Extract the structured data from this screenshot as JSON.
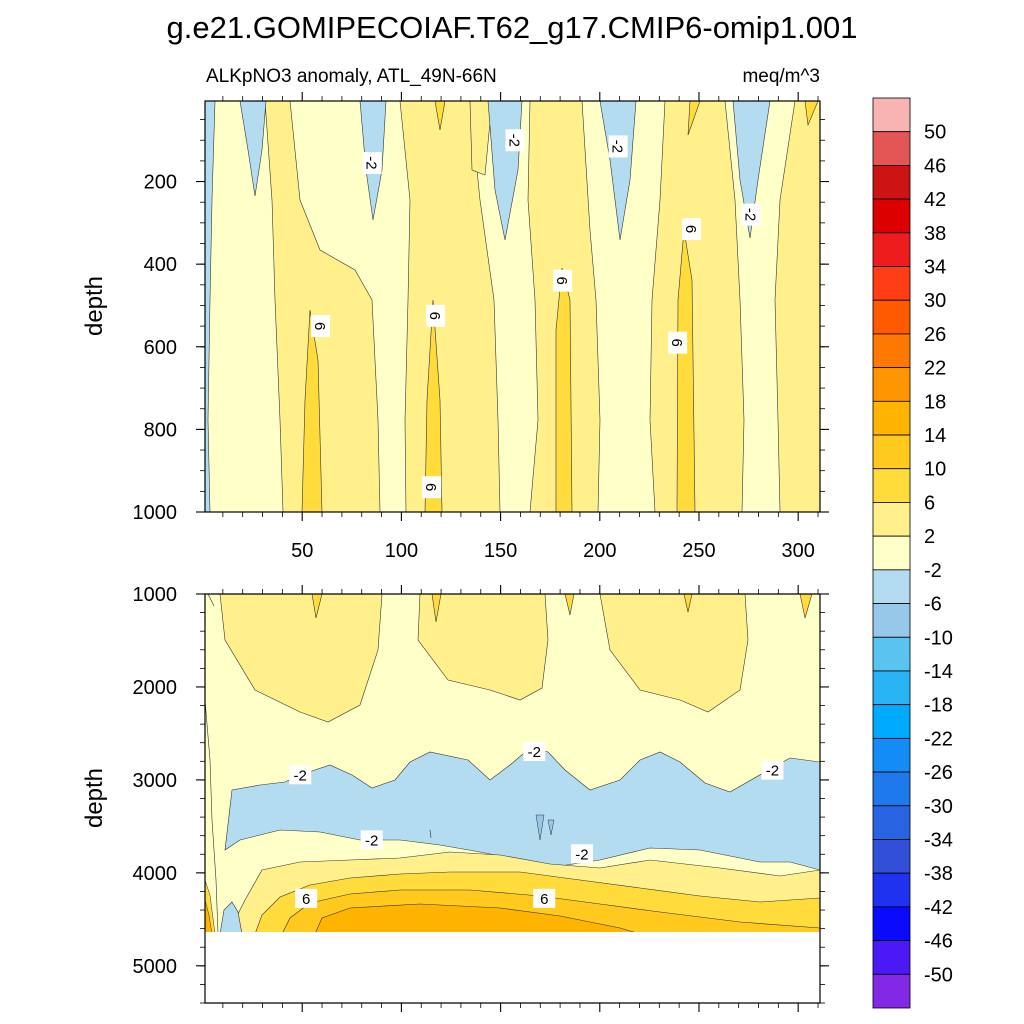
{
  "chart_data": [
    {
      "type": "heatmap",
      "title": "g.e21.GOMIPECOIAF.T62_g17.CMIP6-omip1.001",
      "subtitle_left": "ALKpNO3 anomaly, ATL_49N-66N",
      "subtitle_right": "meq/m^3",
      "xlabel": "",
      "ylabel": "depth",
      "xlim": [
        1,
        311
      ],
      "ylim": [
        1000,
        5
      ],
      "y_reversed": true,
      "xticks": [
        50,
        100,
        150,
        200,
        250,
        300
      ],
      "yticks": [
        200,
        400,
        600,
        800,
        1000
      ],
      "contour_labels": [
        {
          "x": 85,
          "y": 155,
          "text": "-2"
        },
        {
          "x": 157,
          "y": 100,
          "text": "-2"
        },
        {
          "x": 209,
          "y": 115,
          "text": "-2"
        },
        {
          "x": 276,
          "y": 280,
          "text": "-2"
        },
        {
          "x": 246,
          "y": 315,
          "text": "6"
        },
        {
          "x": 181,
          "y": 440,
          "text": "6"
        },
        {
          "x": 59,
          "y": 550,
          "text": "6"
        },
        {
          "x": 117,
          "y": 525,
          "text": "6"
        },
        {
          "x": 239,
          "y": 590,
          "text": "6"
        },
        {
          "x": 115,
          "y": 940,
          "text": "6"
        }
      ]
    },
    {
      "type": "heatmap",
      "xlabel": "",
      "ylabel": "depth",
      "xlim": [
        1,
        311
      ],
      "ylim": [
        5400,
        1000
      ],
      "y_reversed": true,
      "data_floor_depth": 4630,
      "yticks": [
        1000,
        2000,
        3000,
        4000,
        5000
      ],
      "contour_labels": [
        {
          "x": 49,
          "y": 2950,
          "text": "-2"
        },
        {
          "x": 167,
          "y": 2700,
          "text": "-2"
        },
        {
          "x": 287,
          "y": 2900,
          "text": "-2"
        },
        {
          "x": 85,
          "y": 3650,
          "text": "-2"
        },
        {
          "x": 191,
          "y": 3800,
          "text": "-2"
        },
        {
          "x": 52,
          "y": 4280,
          "text": "6"
        },
        {
          "x": 172,
          "y": 4280,
          "text": "6"
        }
      ]
    }
  ],
  "colorbar": {
    "labels": [
      "50",
      "46",
      "42",
      "38",
      "34",
      "30",
      "26",
      "22",
      "18",
      "14",
      "10",
      "6",
      "2",
      "-2",
      "-6",
      "-10",
      "-14",
      "-18",
      "-22",
      "-26",
      "-30",
      "-34",
      "-38",
      "-42",
      "-46",
      "-50"
    ],
    "colors": [
      "#f8b3b3",
      "#e45656",
      "#cc1414",
      "#dd0000",
      "#ee1c1c",
      "#ff3c14",
      "#ff5a00",
      "#ff7800",
      "#ff9600",
      "#ffb400",
      "#ffc91e",
      "#ffdc3c",
      "#fff08c",
      "#ffffc8",
      "#b4dcf0",
      "#96c8ea",
      "#5ac3f0",
      "#28b4f5",
      "#00aaff",
      "#148cf5",
      "#1e7aeb",
      "#2864e1",
      "#3250d7",
      "#1e32f0",
      "#0a0aff",
      "#4b19f5",
      "#8228e6"
    ]
  }
}
